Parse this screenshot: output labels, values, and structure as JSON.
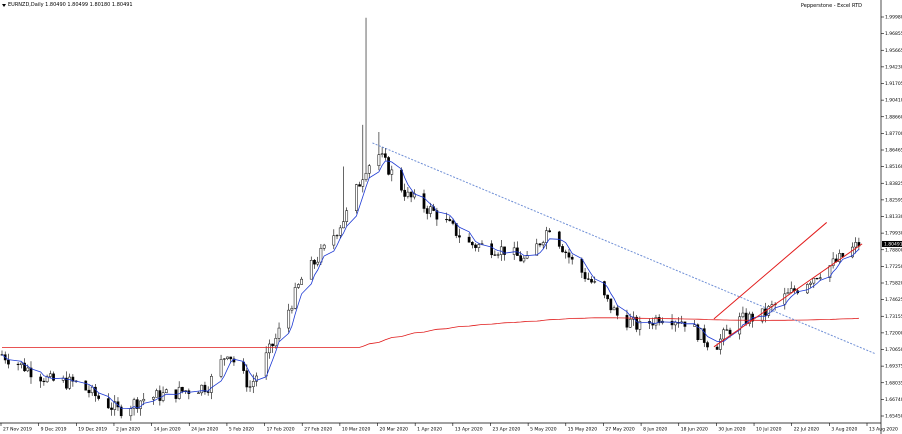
{
  "symbol_info": "EURNZD,Daily  1.80490 1.80499 1.80180 1.80491",
  "broker_label": "Pepperstone - Excel RTD",
  "colors": {
    "bg": "#ffffff",
    "candle": "#000000",
    "ma_fast": "#1e3ad4",
    "ma_slow": "#e01a1a",
    "trend": "#6f8fd6",
    "channel": "#e21b1b"
  },
  "chart_data": {
    "type": "candlestick",
    "title": "EURNZD,Daily",
    "symbol": "EURNZD",
    "timeframe": "Daily",
    "ohlc_header": {
      "open": 1.8049,
      "high": 1.80499,
      "low": 1.8018,
      "close": 1.80491
    },
    "current_price_label": "1.80491",
    "y_ticks": [
      "1.99980",
      "1.96855",
      "1.95665",
      "1.94230",
      "1.91705",
      "1.90410",
      "1.88660",
      "1.87700",
      "1.86465",
      "1.85160",
      "1.83825",
      "1.82595",
      "1.81330",
      "1.79930",
      "1.78800",
      "1.77250",
      "1.75820",
      "1.74625",
      "1.73155",
      "1.72000",
      "1.70650",
      "1.69375",
      "1.68035",
      "1.66740",
      "1.65450"
    ],
    "x_ticks": [
      "27 Nov 2019",
      "9 Dec 2019",
      "19 Dec 2019",
      "2 Jan 2020",
      "14 Jan 2020",
      "24 Jan 2020",
      "5 Feb 2020",
      "17 Feb 2020",
      "27 Feb 2020",
      "10 Mar 2020",
      "20 Mar 2020",
      "1 Apr 2020",
      "13 Apr 2020",
      "23 Apr 2020",
      "5 May 2020",
      "15 May 2020",
      "27 May 2020",
      "8 Jun 2020",
      "18 Jun 2020",
      "30 Jun 2020",
      "10 Jul 2020",
      "22 Jul 2020",
      "3 Aug 2020",
      "13 Aug 2020"
    ],
    "ylim": [
      1.6545,
      1.9998
    ],
    "xlim": [
      "2019-11-27",
      "2020-08-24"
    ],
    "indicators": [
      "fast moving average (blue)",
      "slow moving average (red)"
    ],
    "drawings": [
      {
        "type": "trendline",
        "style": "dashed",
        "color": "blue",
        "from": {
          "date": "2020-03-21",
          "price": 1.8898
        },
        "to": {
          "date": "2020-08-24",
          "price": 1.7128
        }
      },
      {
        "type": "channel_upper",
        "color": "red",
        "from": {
          "date": "2020-07-05",
          "price": 1.742
        },
        "to": {
          "date": "2020-08-09",
          "price": 1.823
        }
      },
      {
        "type": "channel_lower",
        "color": "red",
        "from": {
          "date": "2020-07-05",
          "price": 1.7185
        },
        "to": {
          "date": "2020-08-20",
          "price": 1.805
        }
      }
    ],
    "key_points": [
      {
        "label": "spike high",
        "date": "2020-03-19",
        "price": 1.995
      },
      {
        "label": "post-spike top",
        "date": "2020-03-23",
        "price": 1.899
      },
      {
        "label": "early-2020 low",
        "date": "2020-01-02",
        "price": 1.665
      },
      {
        "label": "June low",
        "date": "2020-07-05",
        "price": 1.716
      },
      {
        "label": "latest close",
        "date": "2020-08-19",
        "price": 1.8049
      }
    ],
    "grid": false,
    "legend": "none"
  }
}
